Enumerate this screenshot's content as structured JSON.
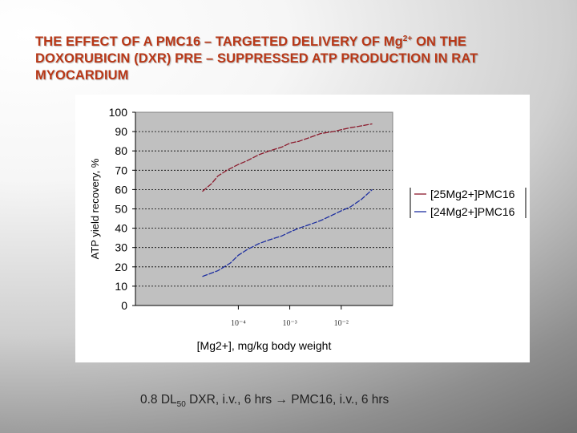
{
  "title": {
    "pre": "THE EFFECT OF A PMC16 – TARGETED DELIVERY OF Mg",
    "sup": "2+",
    "post": " ON THE DOXORUBICIN (DXR) PRE – SUPPRESSED ATP PRODUCTION IN RAT MYOCARDIUM"
  },
  "footnote": {
    "pre": "0.8 DL",
    "sub": "50",
    "post": " DXR, i.v., 6 hrs → PMC16, i.v., 6 hrs"
  },
  "chart_data": {
    "type": "line",
    "xlabel": "[Mg2+], mg/kg body weight",
    "ylabel": "ATP yield recovery, %",
    "x_scale": "log",
    "xlim": [
      1e-06,
      0.1
    ],
    "xticks": [
      {
        "value": 0.0001,
        "label": "10⁻⁴"
      },
      {
        "value": 0.001,
        "label": "10⁻³"
      },
      {
        "value": 0.01,
        "label": "10⁻²"
      }
    ],
    "ylim": [
      0,
      100
    ],
    "yticks": [
      0,
      10,
      20,
      30,
      40,
      50,
      60,
      70,
      80,
      90,
      100
    ],
    "grid": "horizontal dashed",
    "plot_background": "#c0c0c0",
    "legend_position": "right",
    "series": [
      {
        "name": "[25Mg2+]PMC16",
        "color": "#8b1a2c",
        "x": [
          2e-05,
          3e-05,
          4e-05,
          6e-05,
          0.0001,
          0.00015,
          0.00025,
          0.0004,
          0.0007,
          0.001,
          0.0015,
          0.0025,
          0.004,
          0.007,
          0.01,
          0.015,
          0.025,
          0.04
        ],
        "y": [
          59,
          63,
          67,
          70,
          73,
          75,
          78,
          80,
          82,
          84,
          85,
          87,
          89,
          90,
          91,
          92,
          93,
          94
        ]
      },
      {
        "name": "[24Mg2+]PMC16",
        "color": "#1e2fa0",
        "x": [
          2e-05,
          4e-05,
          7e-05,
          0.0001,
          0.00015,
          0.00025,
          0.0004,
          0.0007,
          0.001,
          0.0015,
          0.0025,
          0.004,
          0.007,
          0.01,
          0.015,
          0.025,
          0.04
        ],
        "y": [
          15,
          18,
          22,
          26,
          29,
          32,
          34,
          36,
          38,
          40,
          42,
          44,
          47,
          49,
          51,
          55,
          60
        ]
      }
    ]
  }
}
